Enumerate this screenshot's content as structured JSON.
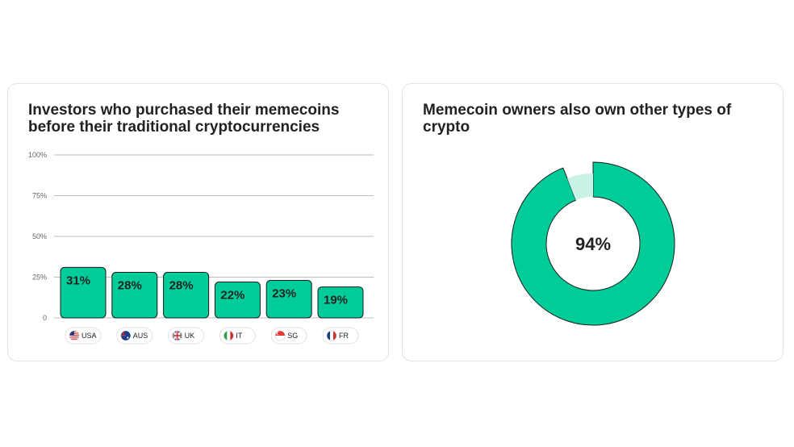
{
  "chart_data": [
    {
      "type": "bar",
      "title": "Investors who purchased their memecoins before their traditional cryptocurrencies",
      "categories": [
        "USA",
        "AUS",
        "UK",
        "IT",
        "SG",
        "FR"
      ],
      "category_flags": [
        "us-flag-icon",
        "au-flag-icon",
        "uk-flag-icon",
        "it-flag-icon",
        "sg-flag-icon",
        "fr-flag-icon"
      ],
      "values": [
        31,
        28,
        28,
        22,
        23,
        19
      ],
      "value_labels": [
        "31%",
        "28%",
        "28%",
        "22%",
        "23%",
        "19%"
      ],
      "ylim": [
        0,
        100
      ],
      "yticks": [
        0,
        25,
        50,
        75,
        100
      ],
      "ytick_labels": [
        "0",
        "25%",
        "50%",
        "75%",
        "100%"
      ],
      "grid": true,
      "bar_color": "#00cc99"
    },
    {
      "type": "pie",
      "title": "Memecoin owners also own other types of crypto",
      "values": [
        94,
        6
      ],
      "center_label": "94%",
      "colors": [
        "#00cc99",
        "#c9f2e6"
      ]
    }
  ]
}
